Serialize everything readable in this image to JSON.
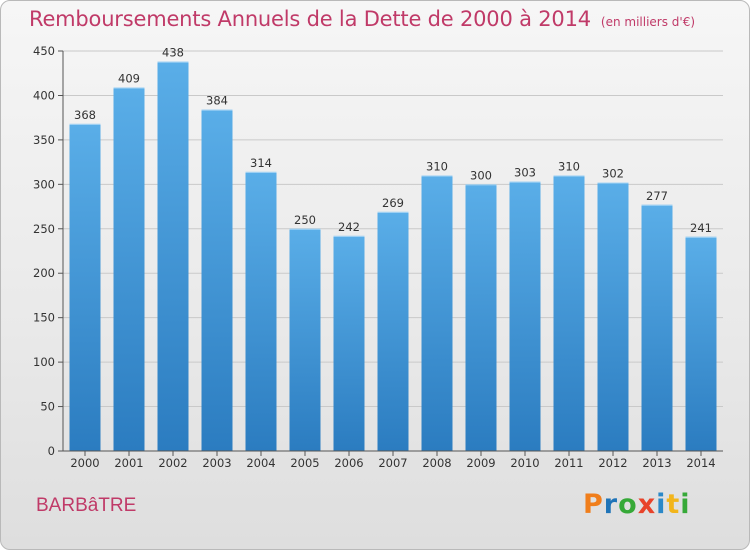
{
  "chart_data": {
    "type": "bar",
    "title": "Remboursements Annuels de la Dette de 2000 à 2014",
    "subtitle": "(en milliers d'€)",
    "categories": [
      "2000",
      "2001",
      "2002",
      "2003",
      "2004",
      "2005",
      "2006",
      "2007",
      "2008",
      "2009",
      "2010",
      "2011",
      "2012",
      "2013",
      "2014"
    ],
    "values": [
      368,
      409,
      438,
      384,
      314,
      250,
      242,
      269,
      310,
      300,
      303,
      310,
      302,
      277,
      241
    ],
    "ylim": [
      0,
      450
    ],
    "yticks": [
      0,
      50,
      100,
      150,
      200,
      250,
      300,
      350,
      400,
      450
    ],
    "xlabel": "",
    "ylabel": "",
    "grid": true
  },
  "footer": {
    "place": "BARBâTRE",
    "logo_letters": [
      "P",
      "r",
      "o",
      "x",
      "i",
      "t",
      "i"
    ],
    "logo_colors": [
      "#f07e1b",
      "#1f74b8",
      "#36a938",
      "#e8432a",
      "#2a88c8",
      "#f2b51b",
      "#36a938"
    ]
  },
  "colors": {
    "bar_top": "#5aaee8",
    "bar_bottom": "#2b7cc0",
    "title": "#c03a68"
  }
}
